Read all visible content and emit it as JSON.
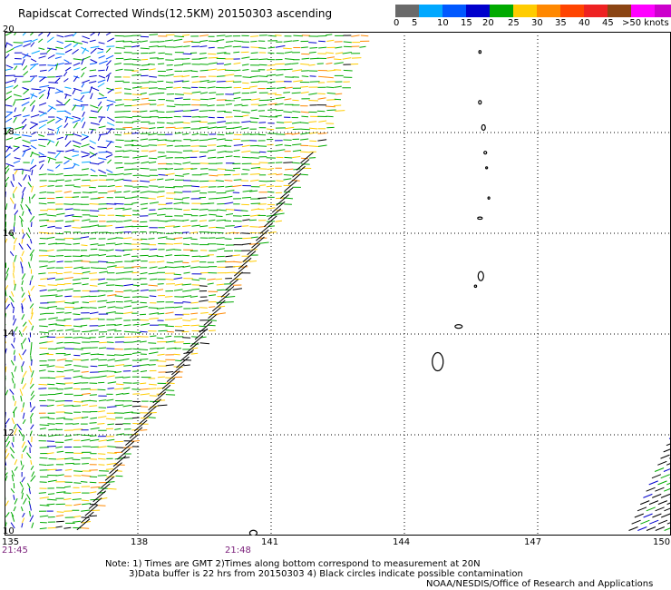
{
  "title": "Rapidscat Corrected Winds(12.5KM) 20150303 ascending",
  "legend": {
    "colors": [
      "#6a6a6a",
      "#00a8ff",
      "#0058ff",
      "#0000cc",
      "#00aa00",
      "#ffcc00",
      "#ff8800",
      "#ff4400",
      "#ee2222",
      "#8b4513",
      "#ff00ff",
      "#cc00cc",
      "#6600cc"
    ],
    "labels": [
      "0",
      "5",
      "10",
      "15",
      "20",
      "25",
      "30",
      "35",
      "40",
      "45",
      ">50 knots"
    ]
  },
  "axes": {
    "lat_labels": [
      "20",
      "18",
      "16",
      "14",
      "12",
      "10"
    ],
    "lon_labels": [
      "135",
      "138",
      "141",
      "144",
      "147",
      "150"
    ]
  },
  "times": [
    "21:45",
    "21:48"
  ],
  "notes": [
    "Note: 1) Times are GMT 2)Times along bottom correspond to measurement at 20N",
    "3)Data buffer is 22 hrs from 20150303 4) Black circles indicate possible contamination",
    "NOAA/NESDIS/Office of Research and Applications"
  ],
  "map_data": {
    "type": "wind-barb-map",
    "lat_range": [
      10,
      20
    ],
    "lon_range": [
      135,
      150
    ],
    "gridlines": true,
    "swath_edge": [
      [
        20,
        143.2
      ],
      [
        18,
        142.3
      ],
      [
        16,
        141.0
      ],
      [
        14,
        139.6
      ],
      [
        12,
        138.1
      ],
      [
        10,
        136.8
      ]
    ],
    "second_swath": {
      "start": [
        10,
        149.0
      ],
      "end": [
        12,
        150.0
      ]
    },
    "dominant_speed_knots": "15-25"
  }
}
